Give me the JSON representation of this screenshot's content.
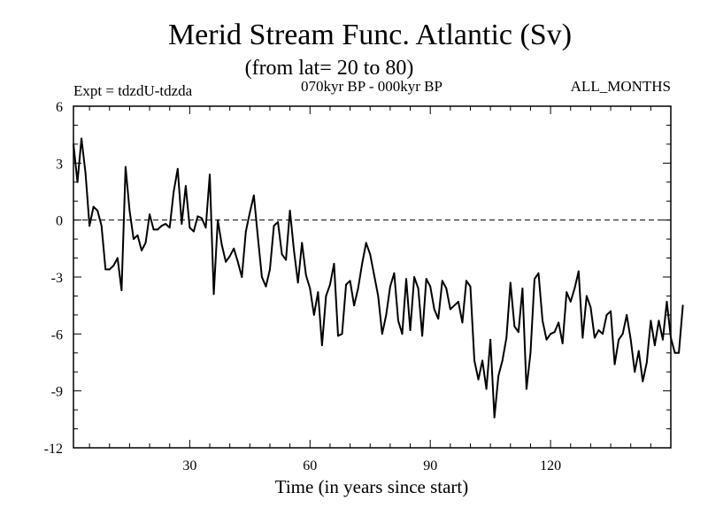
{
  "chart_data": {
    "type": "line",
    "title": "Merid Stream Func. Atlantic (Sv)",
    "subtitle": "(from lat= 20 to 80)",
    "left_label": "Expt = tdzdU-tdzda",
    "center_label": "070kyr BP - 000kyr BP",
    "right_label": "ALL_MONTHS",
    "xlabel": "Time (in years since start)",
    "ylabel": "",
    "xlim": [
      1,
      150
    ],
    "ylim": [
      -12,
      6
    ],
    "xticks": [
      30,
      60,
      90,
      120
    ],
    "xtick_labels": [
      "30",
      "60",
      "90",
      "120"
    ],
    "yticks": [
      6,
      3,
      0,
      -3,
      -6,
      -9,
      -12
    ],
    "ytick_labels": [
      "6",
      "3",
      "0",
      "-3",
      "-6",
      "-9",
      "-12"
    ],
    "reference_line": 0,
    "grid": false,
    "values": [
      4.0,
      2.0,
      4.3,
      2.5,
      -0.3,
      0.7,
      0.5,
      -0.3,
      -2.6,
      -2.6,
      -2.4,
      -2.0,
      -3.7,
      2.8,
      0.5,
      -1.0,
      -0.8,
      -1.6,
      -1.2,
      0.3,
      -0.5,
      -0.5,
      -0.3,
      -0.2,
      -0.4,
      1.5,
      2.7,
      -0.2,
      1.8,
      -0.4,
      -0.6,
      0.2,
      0.1,
      -0.4,
      2.4,
      -3.9,
      0.0,
      -1.3,
      -2.2,
      -1.9,
      -1.5,
      -2.2,
      -3.0,
      -0.6,
      0.4,
      1.3,
      -0.9,
      -3.0,
      -3.5,
      -2.6,
      -0.3,
      -0.1,
      -1.8,
      -2.1,
      0.5,
      -1.6,
      -3.3,
      -1.2,
      -2.9,
      -3.6,
      -5.0,
      -3.8,
      -6.6,
      -4.0,
      -3.4,
      -2.3,
      -6.1,
      -6.0,
      -3.4,
      -3.2,
      -4.5,
      -3.6,
      -2.3,
      -1.2,
      -1.8,
      -2.9,
      -4.0,
      -6.0,
      -5.0,
      -3.5,
      -2.8,
      -5.3,
      -6.0,
      -3.1,
      -5.8,
      -3.0,
      -3.6,
      -6.1,
      -3.1,
      -3.5,
      -4.7,
      -5.2,
      -3.2,
      -3.6,
      -4.7,
      -4.5,
      -4.3,
      -5.4,
      -3.2,
      -3.5,
      -7.4,
      -8.4,
      -7.4,
      -8.9,
      -6.3,
      -10.4,
      -8.2,
      -7.4,
      -6.2,
      -3.3,
      -5.6,
      -5.9,
      -3.6,
      -8.9,
      -7.0,
      -3.1,
      -2.8,
      -5.3,
      -6.3,
      -6.0,
      -5.9,
      -5.4,
      -6.5,
      -3.8,
      -4.3,
      -3.6,
      -2.7,
      -6.2,
      -4.0,
      -4.6,
      -6.2,
      -5.8,
      -6.0,
      -5.0,
      -4.8,
      -7.6,
      -6.3,
      -6.0,
      -5.0,
      -6.3,
      -8.0,
      -6.9,
      -8.5,
      -7.5,
      -5.3,
      -6.6,
      -5.3,
      -6.3,
      -4.3,
      -6.2,
      -7.0,
      -7.0,
      -4.5
    ],
    "x_start": 1,
    "x_step": 1
  }
}
